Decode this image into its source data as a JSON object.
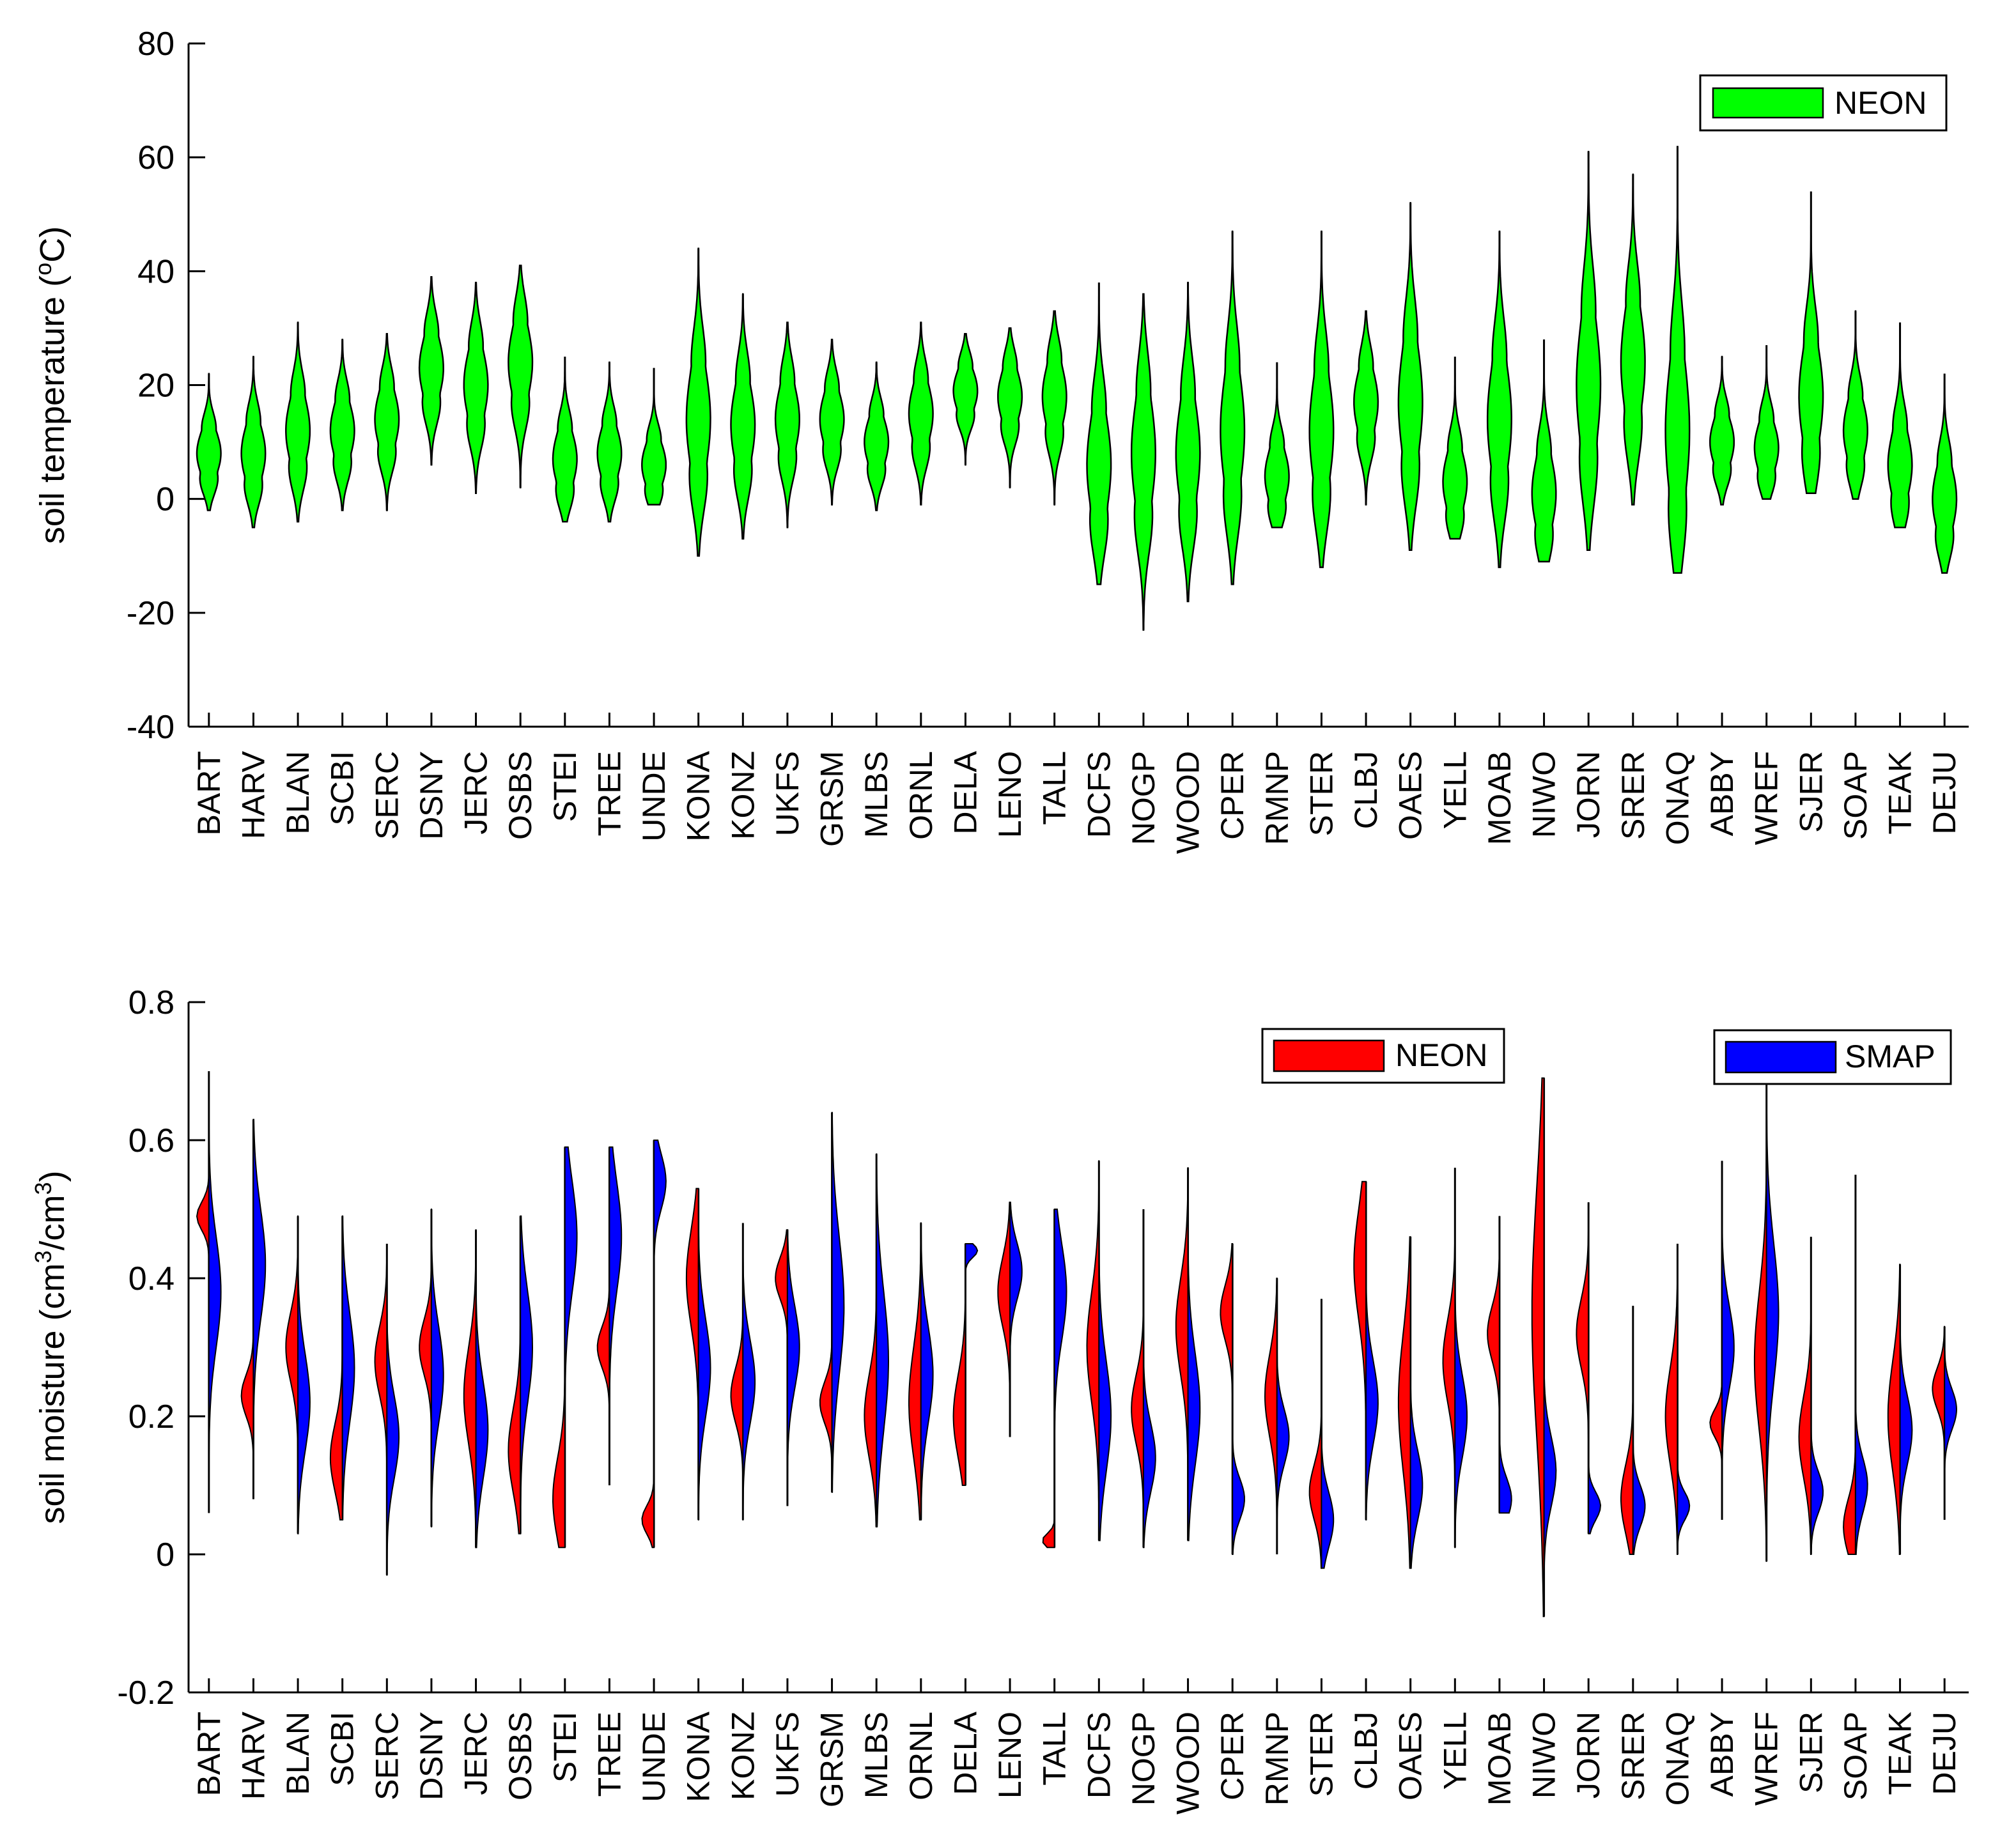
{
  "chart_data": [
    {
      "type": "violin",
      "ylabel": "soil temperature (°C)",
      "ylabel_parts": {
        "pre": "soil temperature (",
        "sup": "o",
        "post": "C)"
      },
      "ylim": [
        -40,
        80
      ],
      "yticks": [
        -40,
        -20,
        0,
        20,
        40,
        60,
        80
      ],
      "categories": [
        "BART",
        "HARV",
        "BLAN",
        "SCBI",
        "SERC",
        "DSNY",
        "JERC",
        "OSBS",
        "STEI",
        "TREE",
        "UNDE",
        "KONA",
        "KONZ",
        "UKFS",
        "GRSM",
        "MLBS",
        "ORNL",
        "DELA",
        "LENO",
        "TALL",
        "DCFS",
        "NOGP",
        "WOOD",
        "CPER",
        "RMNP",
        "STER",
        "CLBJ",
        "OAES",
        "YELL",
        "MOAB",
        "NIWO",
        "JORN",
        "SRER",
        "ONAQ",
        "ABBY",
        "WREF",
        "SJER",
        "SOAP",
        "TEAK",
        "DEJU"
      ],
      "series": [
        {
          "name": "NEON",
          "color": "#00ff00",
          "min": [
            -2,
            -5,
            -4,
            -2,
            -2,
            6,
            1,
            2,
            -4,
            -4,
            -1,
            -10,
            -7,
            -5,
            -1,
            -2,
            -1,
            6,
            2,
            -1,
            -15,
            -23,
            -18,
            -15,
            -5,
            -12,
            -1,
            -9,
            -7,
            -12,
            -11,
            -9,
            -1,
            -13,
            -1,
            0,
            1,
            0,
            -5,
            -13
          ],
          "max": [
            22,
            25,
            31,
            28,
            29,
            39,
            38,
            41,
            25,
            24,
            23,
            44,
            36,
            31,
            28,
            24,
            31,
            29,
            30,
            33,
            38,
            36,
            38,
            47,
            24,
            47,
            33,
            52,
            25,
            47,
            28,
            61,
            57,
            62,
            25,
            27,
            54,
            33,
            31,
            22
          ],
          "median": [
            8,
            8,
            12,
            12,
            14,
            23,
            20,
            24,
            7,
            8,
            6,
            14,
            13,
            14,
            14,
            10,
            15,
            19,
            18,
            18,
            6,
            8,
            8,
            12,
            4,
            12,
            17,
            17,
            3,
            14,
            1,
            20,
            24,
            12,
            10,
            9,
            18,
            12,
            6,
            0
          ]
        }
      ],
      "legend": "top-right"
    },
    {
      "type": "split-violin",
      "ylabel": "soil moisture (cm³/cm³)",
      "ylabel_parts": {
        "pre": "soil moisture (cm",
        "sup1": "3",
        "mid": "/cm",
        "sup2": "3",
        "post": ")"
      },
      "ylim": [
        -0.2,
        0.8
      ],
      "yticks": [
        "-0.2",
        "0",
        "0.2",
        "0.4",
        "0.6",
        "0.8"
      ],
      "categories": [
        "BART",
        "HARV",
        "BLAN",
        "SCBI",
        "SERC",
        "DSNY",
        "JERC",
        "OSBS",
        "STEI",
        "TREE",
        "UNDE",
        "KONA",
        "KONZ",
        "UKFS",
        "GRSM",
        "MLBS",
        "ORNL",
        "DELA",
        "LENO",
        "TALL",
        "DCFS",
        "NOGP",
        "WOOD",
        "CPER",
        "RMNP",
        "STER",
        "CLBJ",
        "OAES",
        "YELL",
        "MOAB",
        "NIWO",
        "JORN",
        "SRER",
        "ONAQ",
        "ABBY",
        "WREF",
        "SJER",
        "SOAP",
        "TEAK",
        "DEJU"
      ],
      "min": [
        0.06,
        0.08,
        0.03,
        0.05,
        -0.03,
        0.04,
        0.01,
        0.03,
        0.01,
        0.1,
        0.01,
        0.05,
        0.05,
        0.07,
        0.09,
        0.04,
        0.05,
        0.1,
        0.17,
        0.01,
        0.02,
        0.01,
        0.02,
        0.0,
        0.0,
        -0.02,
        0.05,
        -0.02,
        0.01,
        0.06,
        -0.09,
        0.03,
        0.0,
        0.0,
        0.05,
        -0.01,
        0.0,
        0.0,
        0.0,
        0.05
      ],
      "max": [
        0.7,
        0.63,
        0.49,
        0.49,
        0.45,
        0.5,
        0.47,
        0.49,
        0.59,
        0.59,
        0.6,
        0.53,
        0.48,
        0.47,
        0.64,
        0.58,
        0.48,
        0.45,
        0.51,
        0.5,
        0.57,
        0.5,
        0.56,
        0.45,
        0.4,
        0.37,
        0.54,
        0.46,
        0.56,
        0.49,
        0.69,
        0.51,
        0.36,
        0.45,
        0.57,
        0.68,
        0.46,
        0.55,
        0.42,
        0.33
      ],
      "series": [
        {
          "name": "NEON",
          "color": "#ff0000",
          "mode": [
            0.49,
            0.23,
            0.3,
            0.14,
            0.28,
            0.3,
            0.23,
            0.15,
            0.08,
            0.3,
            0.05,
            0.4,
            0.23,
            0.4,
            0.22,
            0.2,
            0.22,
            0.2,
            0.38,
            0.02,
            0.3,
            0.21,
            0.33,
            0.35,
            0.23,
            0.09,
            0.42,
            0.22,
            0.28,
            0.32,
            0.35,
            0.32,
            0.08,
            0.2,
            0.19,
            0.28,
            0.17,
            0.04,
            0.2,
            0.24
          ],
          "spread": [
            0.02,
            0.03,
            0.05,
            0.05,
            0.05,
            0.04,
            0.07,
            0.06,
            0.06,
            0.03,
            0.02,
            0.07,
            0.04,
            0.03,
            0.03,
            0.06,
            0.08,
            0.06,
            0.05,
            0.01,
            0.08,
            0.05,
            0.07,
            0.04,
            0.06,
            0.04,
            0.08,
            0.1,
            0.06,
            0.04,
            0.18,
            0.05,
            0.05,
            0.07,
            0.02,
            0.1,
            0.06,
            0.04,
            0.08,
            0.03
          ]
        },
        {
          "name": "SMAP",
          "color": "#0000ff",
          "mode": [
            0.38,
            0.42,
            0.22,
            0.27,
            0.17,
            0.26,
            0.18,
            0.3,
            0.46,
            0.46,
            0.54,
            0.27,
            0.25,
            0.3,
            0.36,
            0.28,
            0.26,
            0.44,
            0.41,
            0.38,
            0.2,
            0.14,
            0.21,
            0.08,
            0.17,
            0.05,
            0.22,
            0.1,
            0.2,
            0.08,
            0.12,
            0.07,
            0.07,
            0.07,
            0.3,
            0.35,
            0.09,
            0.1,
            0.18,
            0.21
          ],
          "spread": [
            0.08,
            0.08,
            0.07,
            0.08,
            0.06,
            0.07,
            0.07,
            0.08,
            0.08,
            0.08,
            0.04,
            0.07,
            0.06,
            0.06,
            0.1,
            0.1,
            0.07,
            0.01,
            0.04,
            0.07,
            0.08,
            0.05,
            0.08,
            0.03,
            0.04,
            0.04,
            0.06,
            0.05,
            0.06,
            0.03,
            0.05,
            0.02,
            0.03,
            0.02,
            0.06,
            0.1,
            0.03,
            0.04,
            0.05,
            0.03
          ]
        }
      ],
      "legend": "top-right"
    }
  ]
}
